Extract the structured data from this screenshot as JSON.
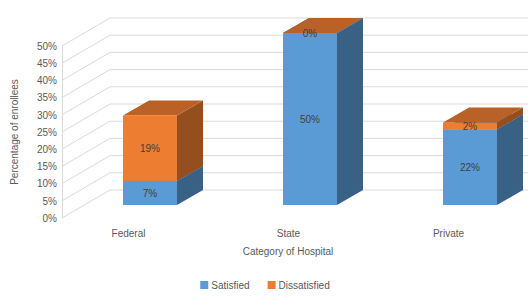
{
  "chart_data": {
    "type": "bar",
    "stacked": true,
    "data_labels": true,
    "legend": "bottom",
    "grid": true,
    "x_label": "Category of Hospital",
    "y_label": "Percentage of enrollees",
    "categories": [
      "Federal",
      "State",
      "Private"
    ],
    "series": [
      {
        "name": "Satisfied",
        "color": "#5b9bd5",
        "values": [
          7,
          50,
          22
        ],
        "value_labels": [
          "7%",
          "50%",
          "22%"
        ]
      },
      {
        "name": "Dissatisfied",
        "color": "#ed7d31",
        "values": [
          19,
          0,
          2
        ],
        "value_labels": [
          "19%",
          "0%",
          "2%"
        ]
      }
    ],
    "ylim": [
      0,
      50
    ],
    "yticks": [
      {
        "value": 0,
        "label": "0%"
      },
      {
        "value": 5,
        "label": "5%"
      },
      {
        "value": 10,
        "label": "10%"
      },
      {
        "value": 15,
        "label": "15%"
      },
      {
        "value": 20,
        "label": "20%"
      },
      {
        "value": 25,
        "label": "25%"
      },
      {
        "value": 30,
        "label": "30%"
      },
      {
        "value": 35,
        "label": "35%"
      },
      {
        "value": 40,
        "label": "40%"
      },
      {
        "value": 45,
        "label": "45%"
      },
      {
        "value": 50,
        "label": "50%"
      }
    ]
  }
}
